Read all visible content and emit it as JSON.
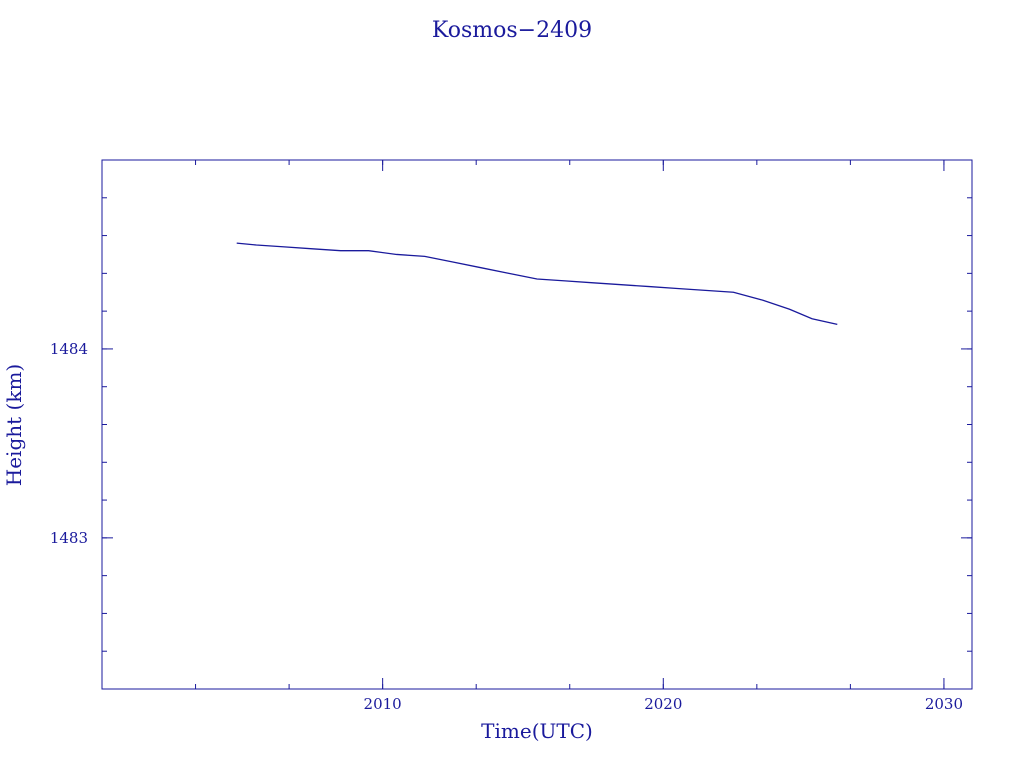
{
  "chart_data": {
    "type": "line",
    "title": "Kosmos−2409",
    "xlabel": "Time(UTC)",
    "ylabel": "Height (km)",
    "xlim": [
      2000,
      2031
    ],
    "ylim": [
      1482.2,
      1485.0
    ],
    "x_ticks": [
      2010,
      2020,
      2030
    ],
    "x_tick_labels": [
      "2010",
      "2020",
      "2030"
    ],
    "y_ticks": [
      1483,
      1484
    ],
    "y_tick_labels": [
      "1483",
      "1484"
    ],
    "grid": false,
    "legend": "none",
    "colors": {
      "line": "#1a1a9c",
      "axes": "#1a1a9c",
      "text": "#1a1a9c"
    },
    "series": [
      {
        "x": [
          2004.8,
          2005.5,
          2006.5,
          2007.5,
          2008.5,
          2009.5,
          2010.5,
          2011.5,
          2012.5,
          2013.5,
          2014.5,
          2015.5,
          2016.5,
          2017.5,
          2018.5,
          2019.5,
          2020.5,
          2021.5,
          2022.5,
          2023.5,
          2024.5,
          2025.3,
          2026.2
        ],
        "y": [
          1484.56,
          1484.55,
          1484.54,
          1484.53,
          1484.52,
          1484.52,
          1484.5,
          1484.49,
          1484.46,
          1484.43,
          1484.4,
          1484.37,
          1484.36,
          1484.35,
          1484.34,
          1484.33,
          1484.32,
          1484.31,
          1484.3,
          1484.26,
          1484.21,
          1484.16,
          1484.13
        ]
      }
    ]
  }
}
